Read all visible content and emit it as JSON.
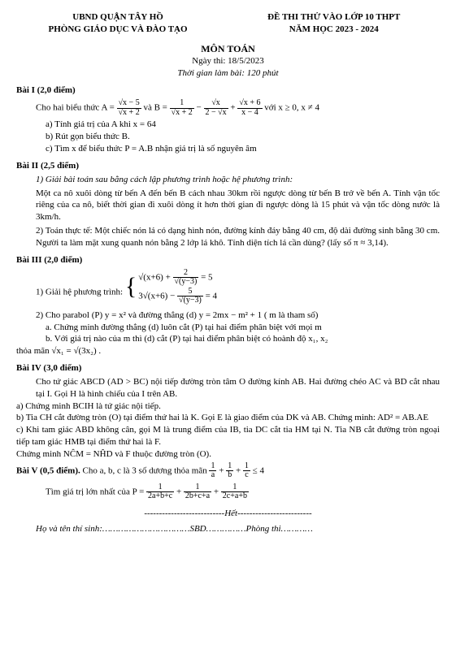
{
  "header": {
    "left1": "UBND QUẬN TÂY HỒ",
    "left2": "PHÒNG GIÁO DỤC VÀ ĐÀO TẠO",
    "right1": "ĐỀ THI THỬ VÀO LỚP 10 THPT",
    "right2": "NĂM HỌC 2023 - 2024"
  },
  "title": {
    "subject": "MÔN TOÁN",
    "date": "Ngày thi: 18/5/2023",
    "duration": "Thời gian làm bài: 120 phút"
  },
  "bai1": {
    "title": "Bài I (2,0 điểm)",
    "intro1": "Cho hai biểu thức  A = ",
    "intro2": "  và B = ",
    "intro3": "   với x ≥ 0, x ≠ 4",
    "a": "a) Tính giá trị của A khi  x = 64",
    "b": "b) Rút gọn biểu thức B.",
    "c": "c) Tìm  x để biểu thức P = A.B nhận giá trị là số nguyên âm",
    "fracA_num": "√x − 5",
    "fracA_den": "√x + 2",
    "fracB1_num": "1",
    "fracB1_den": "√x + 2",
    "fracB2_num": "√x",
    "fracB2_den": "2 − √x",
    "fracB3_num": "√x + 6",
    "fracB3_den": "x − 4"
  },
  "bai2": {
    "title": "Bài II (2,5 điểm)",
    "p1lead": "1)  Giải bài toán sau bằng cách lập phương trình hoặc hệ phương trình:",
    "p1": "Một ca nô xuôi dòng từ bến A đến bến B cách nhau 30km rồi ngược dòng từ bến B trở về bến A. Tính vận tốc riêng của ca nô, biết thời gian đi xuôi dòng ít hơn thời gian đi ngược dòng là 15 phút và vận tốc dòng nước là 3km/h.",
    "p2lead": "2)  Toán thực tế: Một chiếc nón lá có dạng hình nón, đường kính đáy bằng 40 cm, độ dài đường sinh bằng 30 cm. Người ta làm mặt xung quanh nón bằng 2 lớp lá khô. Tính diện tích lá cần dùng? (lấy số π ≈ 3,14)."
  },
  "bai3": {
    "title": "Bài III (2,0 điểm)",
    "p1": "1)  Giải hệ phương trình: ",
    "sys1": "√(x+6) + 2/√(y−3) = 5",
    "sys2": "3√(x+6) − 5/√(y−3) = 4",
    "p2": "2) Cho parabol (P) y = x² và đường thẳng (d)  y = 2mx − m² + 1 ( m là tham số)",
    "p2a": "a. Chứng minh đường thẳng (d) luôn cắt (P) tại hai điểm phân biệt với mọi m",
    "p2b": "b. Với giá trị nào của m thì (d) cắt (P) tại hai điểm phân biệt có hoành độ x₁, x₂",
    "p2c": "thỏa mãn √x₁ = √(3x₂) ."
  },
  "bai4": {
    "title": "Bài IV (3,0 điểm)",
    "intro": "Cho tứ giác ABCD (AD > BC) nội tiếp đường tròn tâm O đường kính AB. Hai đường chéo AC và BD cắt nhau tại I. Gọi H là hình chiếu của I trên AB.",
    "a": "a) Chứng minh BCIH là tứ giác nội tiếp.",
    "b": "b) Tia CH cắt đường tròn (O) tại điểm thứ hai là K. Gọi E là giao điểm của DK và AB. Chứng minh: AD² = AB.AE",
    "c": "c) Khi tam giác ABD không cân, gọi M là trung điểm của IB, tia DC cắt tia HM tại N. Tia NB cắt đường tròn ngoại tiếp tam giác HMB tại điểm thứ hai là F.",
    "c2": "Chứng minh  NĈM = NĤD  và F thuộc đường tròn (O)."
  },
  "bai5": {
    "title": "Bài V (0,5 điểm). ",
    "intro": "Cho a, b, c là 3 số dương thỏa mãn ",
    "cond_num1": "1",
    "cond_den1": "a",
    "cond_num2": "1",
    "cond_den2": "b",
    "cond_num3": "1",
    "cond_den3": "c",
    "cond_tail": " ≤ 4",
    "find": "Tìm giá trị lớn nhất của  P = ",
    "p1n": "1",
    "p1d": "2a+b+c",
    "p2n": "1",
    "p2d": "2b+c+a",
    "p3n": "1",
    "p3d": "2c+a+b"
  },
  "footer": {
    "end": "---------------------------Hết-------------------------",
    "sig": "Họ và tên thí sinh:……………………………SBD……………Phòng thi…………"
  }
}
